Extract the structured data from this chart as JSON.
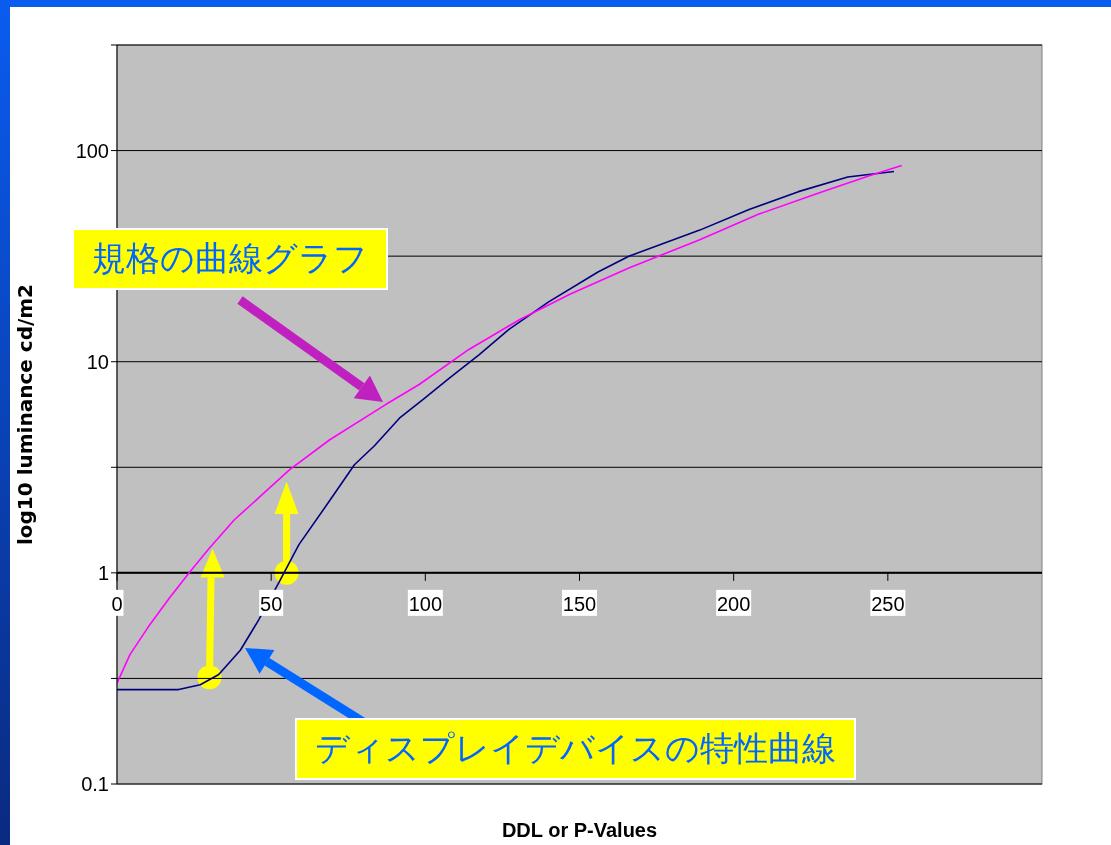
{
  "chart_data": {
    "type": "line",
    "xlabel": "DDL or P-Values",
    "ylabel": "log10 luminance cd/m2",
    "xlim": [
      0,
      300
    ],
    "xticks": [
      0,
      50,
      100,
      150,
      200,
      250
    ],
    "ylim": [
      0.1,
      316.2
    ],
    "yticks": [
      0.1,
      {
        "value": 0.3162,
        "label": null
      },
      1,
      {
        "value": 3.162,
        "label": null
      },
      10,
      {
        "value": 31.62,
        "label": null
      },
      100,
      {
        "value": 316.2,
        "label": null
      }
    ],
    "log": "y",
    "grid": "y",
    "marker": "none",
    "line_style": "solid",
    "series": [
      {
        "color": "#000080",
        "x": [
          0,
          20,
          27,
          33,
          40,
          46,
          53,
          59,
          69,
          77,
          83.5,
          91.6,
          99.7,
          108,
          117.5,
          127,
          140,
          156,
          166,
          189,
          205,
          221,
          237,
          252
        ],
        "values": [
          0.28,
          0.28,
          0.295,
          0.33,
          0.43,
          0.6,
          0.93,
          1.36,
          2.2,
          3.25,
          4.0,
          5.4,
          6.7,
          8.4,
          10.8,
          14.2,
          19.2,
          26.6,
          31.6,
          42,
          52.6,
          63.9,
          75,
          79.6
        ]
      },
      {
        "color": "#ff00ff",
        "x": [
          0,
          4.2,
          10.7,
          17,
          23.6,
          30,
          38,
          46,
          56,
          69,
          87,
          98,
          114,
          130.5,
          146.7,
          166,
          189,
          208,
          227.6,
          244,
          254.5
        ],
        "values": [
          0.3,
          0.41,
          0.57,
          0.76,
          1.01,
          1.31,
          1.78,
          2.27,
          3.08,
          4.27,
          6.25,
          7.8,
          11.4,
          15.8,
          20.8,
          27.8,
          37.8,
          49.9,
          63,
          76,
          85
        ]
      }
    ],
    "annotations": [
      "規格の曲線グラフ",
      "ディスプレイデバイスの特性曲線"
    ]
  }
}
